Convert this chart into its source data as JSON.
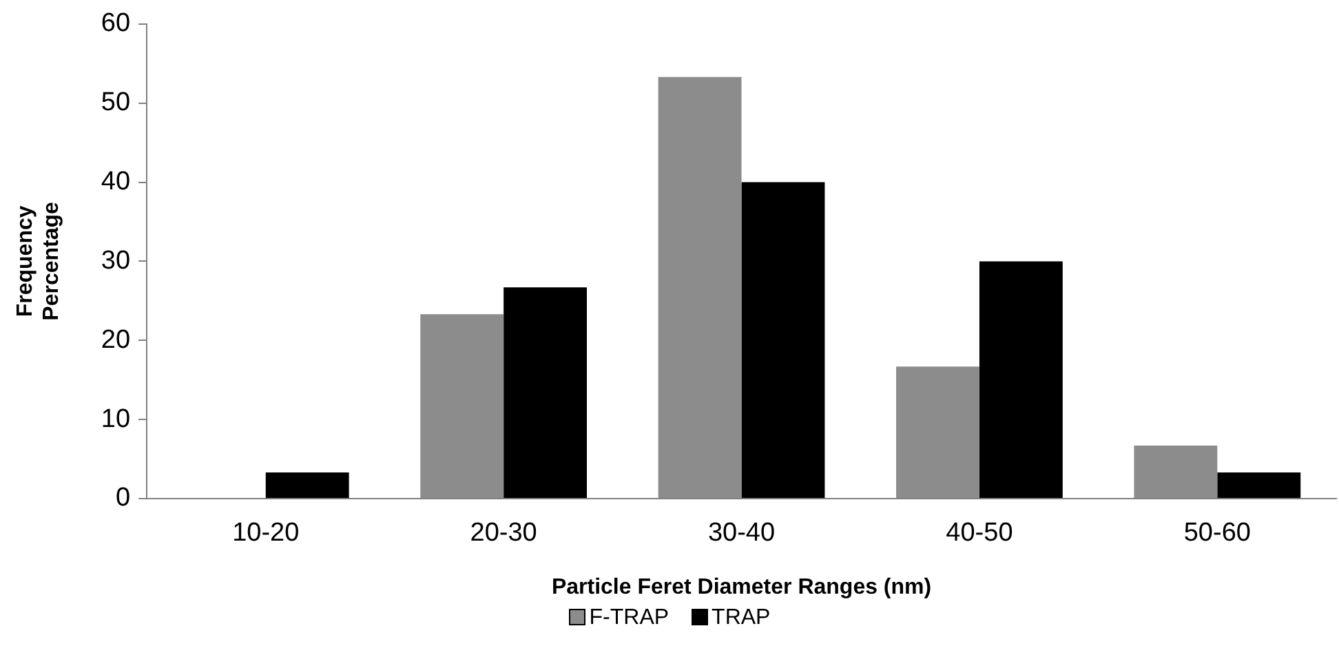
{
  "chart_data": {
    "type": "bar",
    "xlabel": "Particle Feret Diameter Ranges (nm)",
    "ylabel": "Frequency Percentage",
    "categories": [
      "10-20",
      "20-30",
      "30-40",
      "40-50",
      "50-60"
    ],
    "series": [
      {
        "name": "F-TRAP",
        "color": "#8c8c8c",
        "values": [
          0,
          23.3,
          53.3,
          16.7,
          6.7
        ]
      },
      {
        "name": "TRAP",
        "color": "#000000",
        "values": [
          3.3,
          26.7,
          40,
          30,
          3.3
        ]
      }
    ],
    "ylim": [
      0,
      60
    ],
    "yticks": [
      0,
      10,
      20,
      30,
      40,
      50,
      60
    ],
    "grid": false,
    "legend": "bottom"
  }
}
